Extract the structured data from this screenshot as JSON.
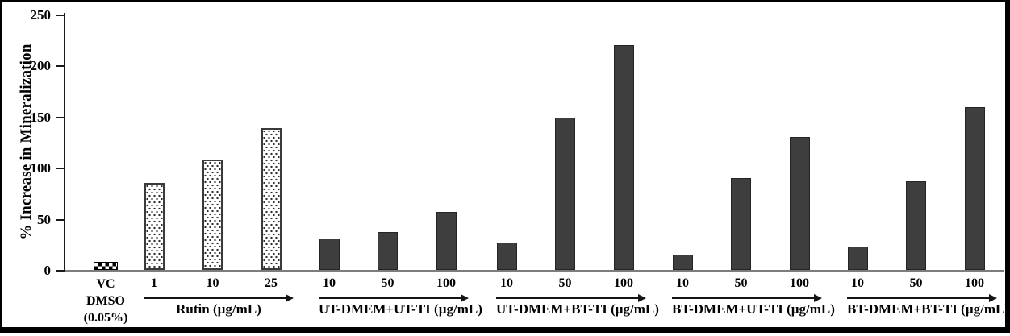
{
  "chart_data": {
    "type": "bar",
    "title": "",
    "xlabel": "",
    "ylabel": "% Increase in Mineralization",
    "ylim": [
      0,
      250
    ],
    "yticks": [
      0,
      50,
      100,
      150,
      200,
      250
    ],
    "grid": false,
    "legend": "none",
    "bar_styles": {
      "checker": "black-and-white checkerboard fill",
      "dots": "white fill with black stipple dots",
      "solid": "dark charcoal solid fill"
    },
    "groups": [
      {
        "label": "VC DMSO (0.05%)",
        "label_lines": [
          "VC",
          "DMSO",
          "(0.05%)"
        ],
        "style": "checker",
        "arrow": false,
        "bars": [
          {
            "x": "",
            "value": 8
          }
        ]
      },
      {
        "label": "Rutin (µg/mL)",
        "style": "dots",
        "arrow": true,
        "bars": [
          {
            "x": "1",
            "value": 85
          },
          {
            "x": "10",
            "value": 108
          },
          {
            "x": "25",
            "value": 139
          }
        ]
      },
      {
        "label": "UT-DMEM+UT-TI (µg/mL)",
        "style": "solid",
        "arrow": true,
        "bars": [
          {
            "x": "10",
            "value": 31
          },
          {
            "x": "50",
            "value": 37
          },
          {
            "x": "100",
            "value": 57
          }
        ]
      },
      {
        "label": "UT-DMEM+BT-TI (µg/mL)",
        "style": "solid",
        "arrow": true,
        "bars": [
          {
            "x": "10",
            "value": 27
          },
          {
            "x": "50",
            "value": 149
          },
          {
            "x": "100",
            "value": 220
          }
        ]
      },
      {
        "label": "BT-DMEM+UT-TI (µg/mL)",
        "style": "solid",
        "arrow": true,
        "bars": [
          {
            "x": "10",
            "value": 15
          },
          {
            "x": "50",
            "value": 90
          },
          {
            "x": "100",
            "value": 130
          }
        ]
      },
      {
        "label": "BT-DMEM+BT-TI (µg/mL)",
        "style": "solid",
        "arrow": true,
        "bars": [
          {
            "x": "10",
            "value": 23
          },
          {
            "x": "50",
            "value": 87
          },
          {
            "x": "100",
            "value": 159
          }
        ]
      }
    ]
  },
  "colors": {
    "bar_solid": "#3e3e3e",
    "axis": "#1a1a1a",
    "baseline": "#7d7d7d",
    "text": "#000000",
    "background": "#ffffff",
    "frame_border": "#000000"
  }
}
